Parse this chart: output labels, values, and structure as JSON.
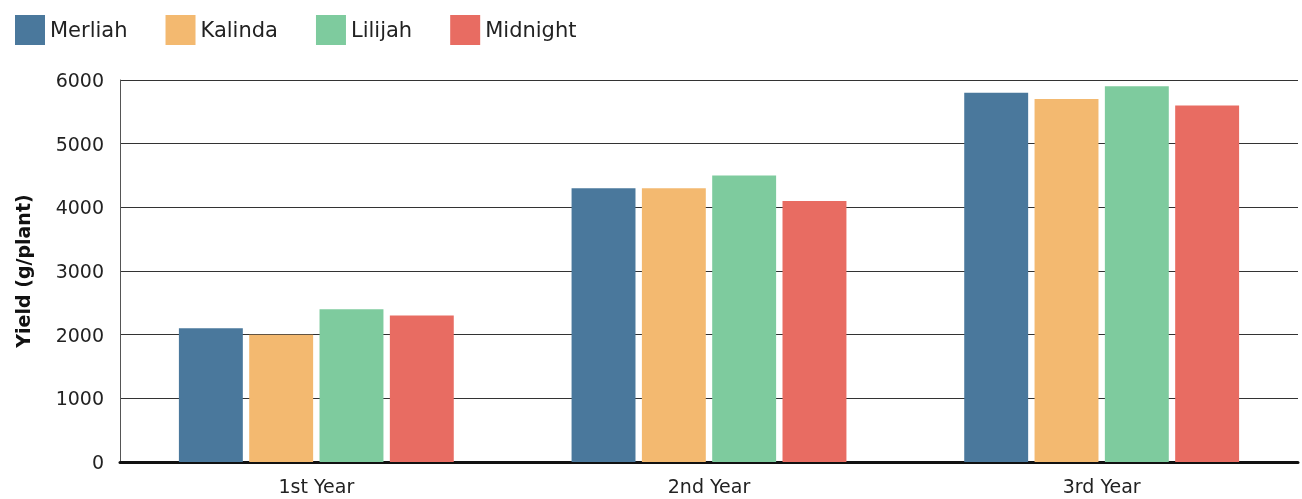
{
  "chart_data": {
    "type": "bar",
    "ylabel": "Yield (g/plant)",
    "categories": [
      "1st Year",
      "2nd Year",
      "3rd Year"
    ],
    "series": [
      {
        "name": "Merliah",
        "color": "#4a789c",
        "values": [
          2100,
          4300,
          5800
        ]
      },
      {
        "name": "Kalinda",
        "color": "#f3b970",
        "values": [
          2000,
          4300,
          5700
        ]
      },
      {
        "name": "Lilijah",
        "color": "#7ecb9e",
        "values": [
          2400,
          4500,
          5900
        ]
      },
      {
        "name": "Midnight",
        "color": "#e86c62",
        "values": [
          2300,
          4100,
          5600
        ]
      }
    ],
    "ylim": [
      0,
      6000
    ],
    "yticks": [
      0,
      1000,
      2000,
      3000,
      4000,
      5000,
      6000
    ],
    "grid": "y",
    "legend": "top left"
  }
}
